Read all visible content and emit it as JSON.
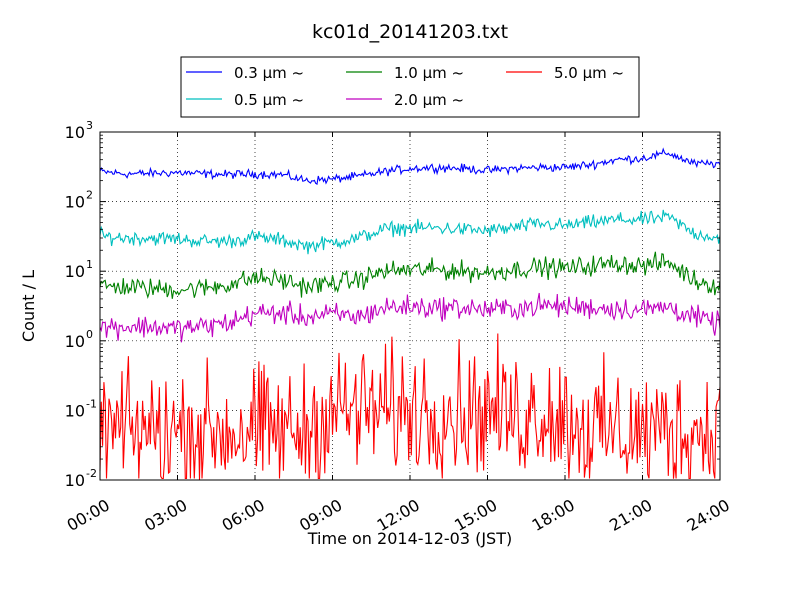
{
  "chart_data": {
    "type": "line",
    "title": "kc01d_20141203.txt",
    "xlabel": "Time on 2014-12-03 (JST)",
    "ylabel": "Count / L",
    "yscale": "log",
    "ylim": [
      0.01,
      1000
    ],
    "xlim": [
      "00:00",
      "24:00"
    ],
    "x_ticks": [
      "00:00",
      "03:00",
      "06:00",
      "09:00",
      "12:00",
      "15:00",
      "18:00",
      "21:00",
      "24:00"
    ],
    "y_ticks": [
      {
        "value": 0.01,
        "base": "10",
        "exp": "-2"
      },
      {
        "value": 0.1,
        "base": "10",
        "exp": "-1"
      },
      {
        "value": 1,
        "base": "10",
        "exp": "0"
      },
      {
        "value": 10,
        "base": "10",
        "exp": "1"
      },
      {
        "value": 100,
        "base": "10",
        "exp": "2"
      },
      {
        "value": 1000,
        "base": "10",
        "exp": "3"
      }
    ],
    "grid": true,
    "legend_position": "top",
    "x_hours": [
      0,
      1,
      2,
      3,
      4,
      5,
      6,
      7,
      8,
      9,
      10,
      11,
      12,
      13,
      14,
      15,
      16,
      17,
      18,
      19,
      20,
      21,
      22,
      23,
      24
    ],
    "series": [
      {
        "name": "0.3 μm ~",
        "color": "#0000ff",
        "values": [
          270,
          250,
          255,
          262,
          250,
          245,
          250,
          245,
          200,
          210,
          230,
          270,
          300,
          310,
          300,
          280,
          300,
          310,
          310,
          340,
          400,
          420,
          500,
          350,
          350
        ],
        "noise": 0.03
      },
      {
        "name": "0.5 μm ~",
        "color": "#00bfbf",
        "values": [
          32,
          30,
          30,
          29,
          27,
          27,
          31,
          28,
          23,
          26,
          30,
          40,
          42,
          42,
          40,
          38,
          42,
          48,
          45,
          50,
          55,
          55,
          60,
          35,
          30
        ],
        "noise": 0.05
      },
      {
        "name": "1.0 μm ~",
        "color": "#008000",
        "values": [
          6,
          6,
          5.6,
          5.5,
          5.7,
          6.5,
          8,
          7.5,
          6,
          6.8,
          7.5,
          10,
          10.5,
          10.5,
          10,
          9.5,
          10.5,
          11.5,
          11,
          12,
          13,
          12,
          13.5,
          7.5,
          6
        ],
        "noise": 0.07
      },
      {
        "name": "2.0 μm ~",
        "color": "#bf00bf",
        "values": [
          1.6,
          1.6,
          1.6,
          1.5,
          1.6,
          1.8,
          2.5,
          2.5,
          2.2,
          2.4,
          2.2,
          3,
          3.1,
          3,
          3,
          2.8,
          2.9,
          3.2,
          3.1,
          3,
          2.9,
          2.8,
          3.1,
          2.2,
          1.7
        ],
        "noise": 0.08
      },
      {
        "name": "5.0 μm ~",
        "color": "#ff0000",
        "values": [
          0.05,
          0.05,
          0.05,
          0.05,
          0.05,
          0.05,
          0.05,
          0.05,
          0.05,
          0.1,
          0.1,
          0.1,
          0.1,
          0.1,
          0.1,
          0.1,
          0.08,
          0.1,
          0.08,
          0.05,
          0.05,
          0.05,
          0.05,
          0.05,
          0.05
        ],
        "noise": 0.45
      }
    ]
  }
}
